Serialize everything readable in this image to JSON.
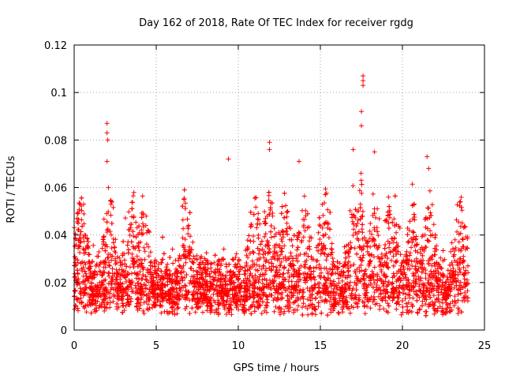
{
  "chart_data": {
    "type": "scatter",
    "title": "Day 162 of 2018, Rate Of TEC Index for receiver rgdg",
    "xlabel": "GPS time / hours",
    "ylabel": "ROTI / TECUs",
    "xlim": [
      0,
      25
    ],
    "ylim": [
      0,
      0.12
    ],
    "xticks": [
      "0",
      "5",
      "10",
      "15",
      "20",
      "25"
    ],
    "yticks": [
      "0",
      "0.02",
      "0.04",
      "0.06",
      "0.08",
      "0.1",
      "0.12"
    ],
    "grid": true,
    "marker": "+",
    "color": "#ff0000",
    "series": [
      {
        "name": "ROTI",
        "description": "dense per-satellite ROTI samples, 0-24 h; values mostly 0.005-0.05 TECU/min",
        "notable_points": [
          {
            "x": 2.0,
            "y": 0.087
          },
          {
            "x": 2.0,
            "y": 0.083
          },
          {
            "x": 2.05,
            "y": 0.08
          },
          {
            "x": 2.0,
            "y": 0.071
          },
          {
            "x": 9.4,
            "y": 0.072
          },
          {
            "x": 11.9,
            "y": 0.079
          },
          {
            "x": 11.9,
            "y": 0.076
          },
          {
            "x": 13.7,
            "y": 0.071
          },
          {
            "x": 17.0,
            "y": 0.076
          },
          {
            "x": 17.6,
            "y": 0.107
          },
          {
            "x": 17.6,
            "y": 0.105
          },
          {
            "x": 17.6,
            "y": 0.103
          },
          {
            "x": 17.5,
            "y": 0.092
          },
          {
            "x": 17.5,
            "y": 0.086
          },
          {
            "x": 18.3,
            "y": 0.075
          },
          {
            "x": 21.5,
            "y": 0.073
          },
          {
            "x": 21.6,
            "y": 0.068
          }
        ]
      }
    ]
  }
}
